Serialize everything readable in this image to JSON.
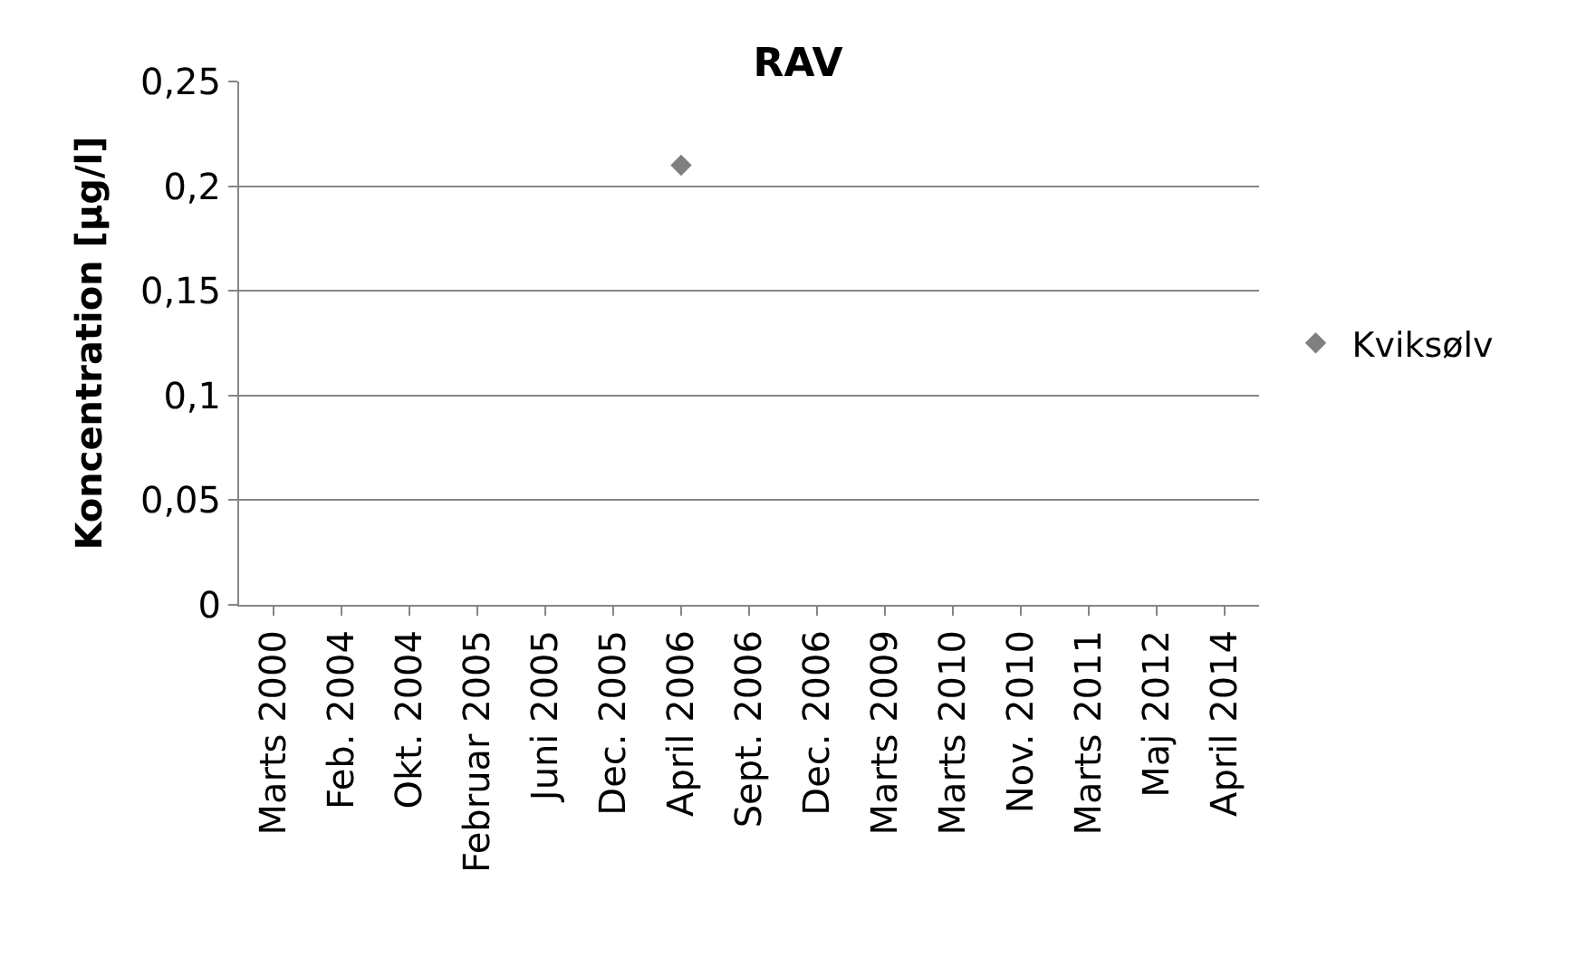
{
  "chart_data": {
    "type": "scatter",
    "title": "RAV",
    "ylabel": "Koncentration [µg/l]",
    "categories": [
      "Marts 2000",
      "Feb. 2004",
      "Okt. 2004",
      "Februar 2005",
      "Juni 2005",
      "Dec. 2005",
      "April 2006",
      "Sept. 2006",
      "Dec. 2006",
      "Marts 2009",
      "Marts 2010",
      "Nov. 2010",
      "Marts 2011",
      "Maj 2012",
      "April 2014"
    ],
    "series": [
      {
        "name": "Kviksølv",
        "color": "#808080",
        "values": [
          null,
          null,
          null,
          null,
          null,
          null,
          0.21,
          null,
          null,
          null,
          null,
          null,
          null,
          null,
          null
        ]
      }
    ],
    "ylim": [
      0,
      0.25
    ],
    "yticks": [
      {
        "value": 0,
        "label": "0"
      },
      {
        "value": 0.05,
        "label": "0,05"
      },
      {
        "value": 0.1,
        "label": "0,1"
      },
      {
        "value": 0.15,
        "label": "0,15"
      },
      {
        "value": 0.2,
        "label": "0,2"
      },
      {
        "value": 0.25,
        "label": "0,25"
      }
    ],
    "grid": "y",
    "legend": "right",
    "marker": "diamond"
  }
}
